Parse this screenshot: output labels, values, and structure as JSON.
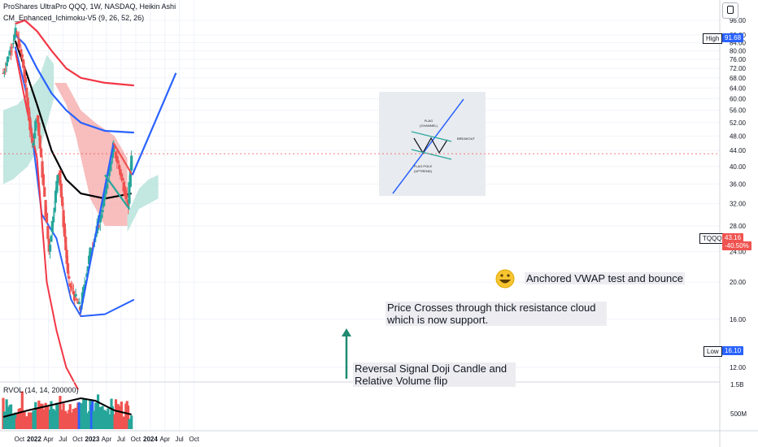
{
  "header": {
    "title_line": "ProShares UltraPro QQQ, 1W, NASDAQ, Heikin Ashi",
    "indicator_line": "CM_Enhanced_Ichimoku-V5 (9, 26, 52, 26)",
    "rvol_line": "RVOL (14, 14, 200000)"
  },
  "price_badges": {
    "high_label": "High",
    "high_value": "91.68",
    "symbol": "TQQQ",
    "last_value": "43.16",
    "change": "-40.50%",
    "low_label": "Low",
    "low_value": "16.10"
  },
  "annotations": {
    "vwap": "Anchored  VWAP test and bounce",
    "cloud": "Price  Crosses through thick resistance cloud which is now support.",
    "reversal": "Reversal Signal  Doji Candle and Relative Volume flip",
    "flag_inset": {
      "flag": "FLAG",
      "channel": "(CHANNEL)",
      "breakout": "BREAKOUT",
      "pole": "FLAG POLE",
      "uptrend": "(UPTREND)"
    }
  },
  "colors": {
    "bull": "#26a69a",
    "bear": "#ef5350",
    "vwap": "#000000",
    "ma_blue": "#2962ff",
    "ma_red": "#f23645",
    "cloud_bear": "#f7b1b1",
    "cloud_bull": "#b8e3dc",
    "trend_blue": "#2962ff"
  },
  "chart_data": {
    "type": "candlestick",
    "y_scale": "log",
    "ylim": [
      10,
      100
    ],
    "y_ticks": [
      "96.00",
      "88.00",
      "84.00",
      "80.00",
      "76.00",
      "72.00",
      "68.00",
      "64.00",
      "60.00",
      "56.00",
      "52.00",
      "48.00",
      "44.00",
      "40.00",
      "36.00",
      "32.00",
      "28.00",
      "24.00",
      "20.00",
      "16.00",
      "12.00"
    ],
    "x_ticks": [
      "Oct",
      "2022",
      "Apr",
      "Jul",
      "Oct",
      "2023",
      "Apr",
      "Jul",
      "Oct",
      "2024",
      "Apr",
      "Jul",
      "Oct"
    ],
    "rvol_ticks": [
      "1.5B",
      "500M"
    ],
    "anchors": [
      {
        "date": "2021-09-01",
        "price": 70
      },
      {
        "date": "2021-11-20",
        "price": 90
      },
      {
        "date": "2022-01-01",
        "price": 75
      },
      {
        "date": "2022-03-01",
        "price": 45
      },
      {
        "date": "2022-04-01",
        "price": 55
      },
      {
        "date": "2022-06-15",
        "price": 24
      },
      {
        "date": "2022-08-15",
        "price": 40
      },
      {
        "date": "2022-10-15",
        "price": 20
      },
      {
        "date": "2022-12-28",
        "price": 17
      },
      {
        "date": "2023-03-01",
        "price": 24
      },
      {
        "date": "2023-05-01",
        "price": 29
      },
      {
        "date": "2023-07-25",
        "price": 45
      },
      {
        "date": "2023-10-25",
        "price": 32
      },
      {
        "date": "2023-11-15",
        "price": 43.16
      }
    ],
    "vwap_line": [
      {
        "date": "2021-11-15",
        "price": 85
      },
      {
        "date": "2022-01-15",
        "price": 72
      },
      {
        "date": "2022-04-01",
        "price": 58
      },
      {
        "date": "2022-07-01",
        "price": 44
      },
      {
        "date": "2022-10-01",
        "price": 37
      },
      {
        "date": "2023-01-01",
        "price": 34
      },
      {
        "date": "2023-06-01",
        "price": 33
      },
      {
        "date": "2023-11-15",
        "price": 34
      }
    ],
    "blue_ma": [
      {
        "date": "2021-11-15",
        "price": 88
      },
      {
        "date": "2022-01-15",
        "price": 83
      },
      {
        "date": "2022-04-01",
        "price": 72
      },
      {
        "date": "2022-07-01",
        "price": 62
      },
      {
        "date": "2022-10-01",
        "price": 56
      },
      {
        "date": "2023-01-01",
        "price": 52
      },
      {
        "date": "2023-06-01",
        "price": 49.5
      },
      {
        "date": "2023-12-01",
        "price": 49
      }
    ],
    "red_ma": [
      {
        "date": "2021-11-15",
        "price": 94
      },
      {
        "date": "2022-01-15",
        "price": 96
      },
      {
        "date": "2022-04-01",
        "price": 90
      },
      {
        "date": "2022-07-01",
        "price": 80
      },
      {
        "date": "2022-10-01",
        "price": 72
      },
      {
        "date": "2023-01-01",
        "price": 68
      },
      {
        "date": "2023-06-01",
        "price": 66
      },
      {
        "date": "2023-12-01",
        "price": 65
      }
    ],
    "lower_blue": [
      {
        "date": "2021-11-15",
        "price": 82
      },
      {
        "date": "2022-02-01",
        "price": 60
      },
      {
        "date": "2022-05-01",
        "price": 30
      },
      {
        "date": "2022-08-01",
        "price": 26
      },
      {
        "date": "2022-11-01",
        "price": 18
      },
      {
        "date": "2023-01-01",
        "price": 16.3
      },
      {
        "date": "2023-06-01",
        "price": 16.5
      },
      {
        "date": "2023-12-01",
        "price": 18
      }
    ],
    "lower_red": [
      {
        "date": "2021-11-15",
        "price": 80
      },
      {
        "date": "2022-02-01",
        "price": 55
      },
      {
        "date": "2022-04-01",
        "price": 42
      },
      {
        "date": "2022-06-01",
        "price": 20
      },
      {
        "date": "2022-08-01",
        "price": 15
      },
      {
        "date": "2022-10-01",
        "price": 12
      },
      {
        "date": "2022-12-15",
        "price": 10.5
      }
    ],
    "trend_lines": [
      {
        "name": "uptrend",
        "from": {
          "date": "2022-12-28",
          "price": 16.5
        },
        "to": {
          "date": "2023-07-25",
          "price": 46
        }
      },
      {
        "name": "flag-top",
        "from": {
          "date": "2023-07-25",
          "price": 46
        },
        "to": {
          "date": "2023-11-20",
          "price": 38
        }
      },
      {
        "name": "flag-bottom",
        "from": {
          "date": "2023-06-01",
          "price": 38
        },
        "to": {
          "date": "2023-11-01",
          "price": 31
        }
      },
      {
        "name": "projection",
        "from": {
          "date": "2023-11-20",
          "price": 38
        },
        "to": {
          "date": "2024-08-20",
          "price": 70
        }
      }
    ]
  }
}
